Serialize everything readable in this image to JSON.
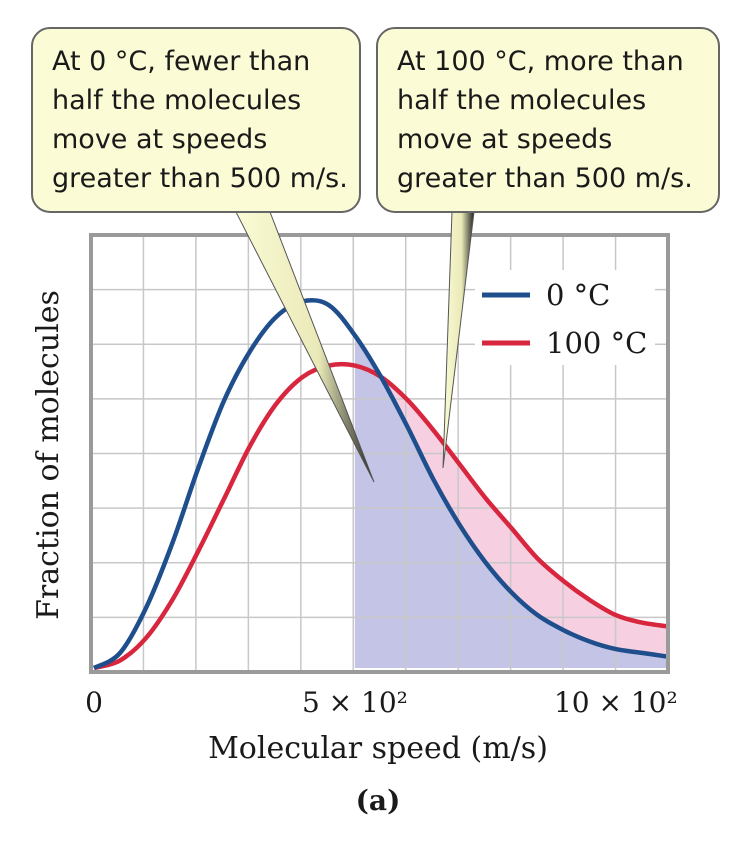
{
  "chart_data": {
    "type": "line",
    "xlabel": "Molecular speed (m/s)",
    "ylabel": "Fraction of molecules",
    "panel_label": "(a)",
    "xlim": [
      0,
      1100
    ],
    "ylim": [
      0,
      1.0
    ],
    "grid": true,
    "legend_position": "top-right",
    "x_ticks": [
      {
        "value": 0,
        "label": "0"
      },
      {
        "value": 500,
        "label": "5 × 10²"
      },
      {
        "value": 1000,
        "label": "10 × 10²"
      }
    ],
    "shaded_threshold": 500,
    "series": [
      {
        "name": "0 °C",
        "color": "#1f4e8c",
        "x": [
          0,
          50,
          100,
          150,
          200,
          250,
          300,
          350,
          400,
          450,
          500,
          550,
          600,
          650,
          700,
          750,
          800,
          850,
          900,
          950,
          1000,
          1050,
          1100
        ],
        "y": [
          0,
          0.04,
          0.16,
          0.33,
          0.53,
          0.71,
          0.84,
          0.93,
          0.97,
          0.96,
          0.88,
          0.77,
          0.64,
          0.5,
          0.38,
          0.28,
          0.2,
          0.14,
          0.1,
          0.07,
          0.05,
          0.04,
          0.03
        ]
      },
      {
        "name": "100 °C",
        "color": "#d7263d",
        "x": [
          0,
          50,
          100,
          150,
          200,
          250,
          300,
          350,
          400,
          450,
          500,
          550,
          600,
          650,
          700,
          750,
          800,
          850,
          900,
          950,
          1000,
          1050,
          1100
        ],
        "y": [
          0,
          0.02,
          0.08,
          0.18,
          0.31,
          0.45,
          0.59,
          0.7,
          0.77,
          0.8,
          0.8,
          0.77,
          0.71,
          0.63,
          0.54,
          0.45,
          0.37,
          0.29,
          0.23,
          0.18,
          0.14,
          0.12,
          0.11
        ]
      }
    ],
    "annotations": [
      {
        "text": [
          "At 0 °C, fewer than",
          "half the molecules",
          "move at speeds",
          "greater than 500 m/s."
        ],
        "points_to_series": "0 °C"
      },
      {
        "text": [
          "At 100 °C, more than",
          "half the molecules",
          "move at speeds",
          "greater than 500 m/s."
        ],
        "points_to_series": "100 °C"
      }
    ]
  },
  "colors": {
    "fill_blue": "#c4c4e6",
    "fill_pink": "#f6cfe0",
    "callout_bg": "#fbfbd6",
    "grid": "#c8c8c8"
  }
}
